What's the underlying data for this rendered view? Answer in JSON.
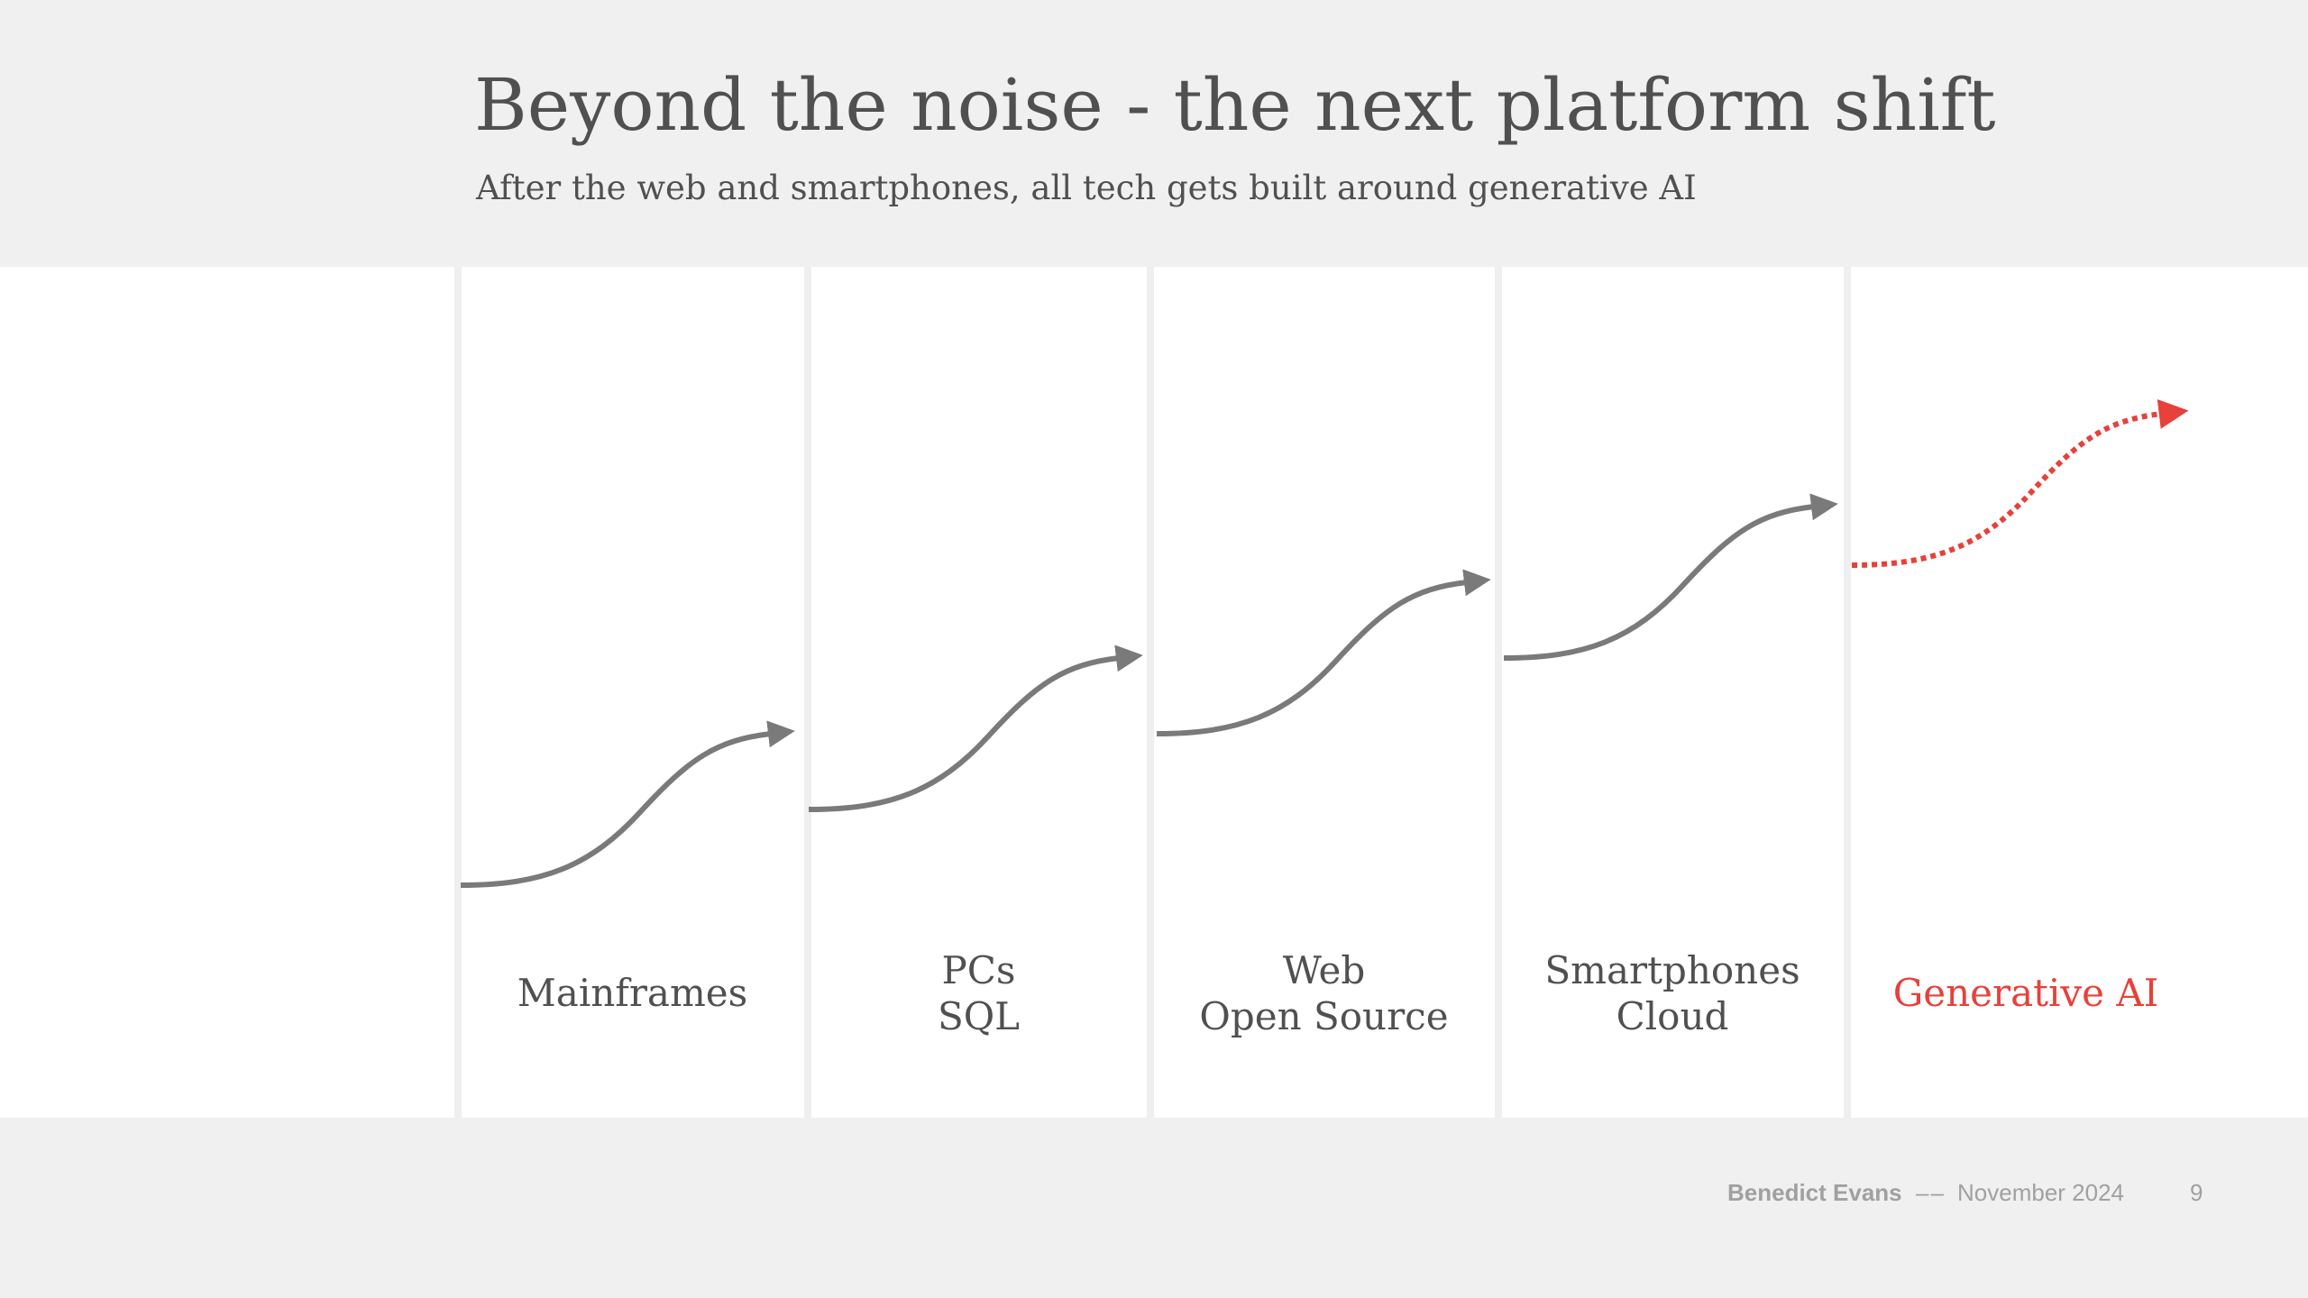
{
  "slide": {
    "title": "Beyond the noise - the next platform shift",
    "subtitle": "After the web and smartphones, all tech gets built around generative AI"
  },
  "eras": [
    {
      "lines": [
        "Mainframes"
      ],
      "highlight": false
    },
    {
      "lines": [
        "PCs",
        "SQL"
      ],
      "highlight": false
    },
    {
      "lines": [
        "Web",
        "Open Source"
      ],
      "highlight": false
    },
    {
      "lines": [
        "Smartphones",
        "Cloud"
      ],
      "highlight": false
    },
    {
      "lines": [
        "Generative AI"
      ],
      "highlight": true
    }
  ],
  "arrows": [
    {
      "era": "Mainframes",
      "style": "solid"
    },
    {
      "era": "PCs SQL",
      "style": "solid"
    },
    {
      "era": "Web Open Source",
      "style": "solid"
    },
    {
      "era": "Smartphones Cloud",
      "style": "solid"
    },
    {
      "era": "Generative AI",
      "style": "dotted"
    }
  ],
  "colors": {
    "accent": "#e8403a",
    "arrow": "#7a7a7a",
    "text": "#505050",
    "footer": "#a0a0a0"
  },
  "footer": {
    "author": "Benedict Evans",
    "separator": "––",
    "date": "November 2024",
    "page_number": "9"
  }
}
